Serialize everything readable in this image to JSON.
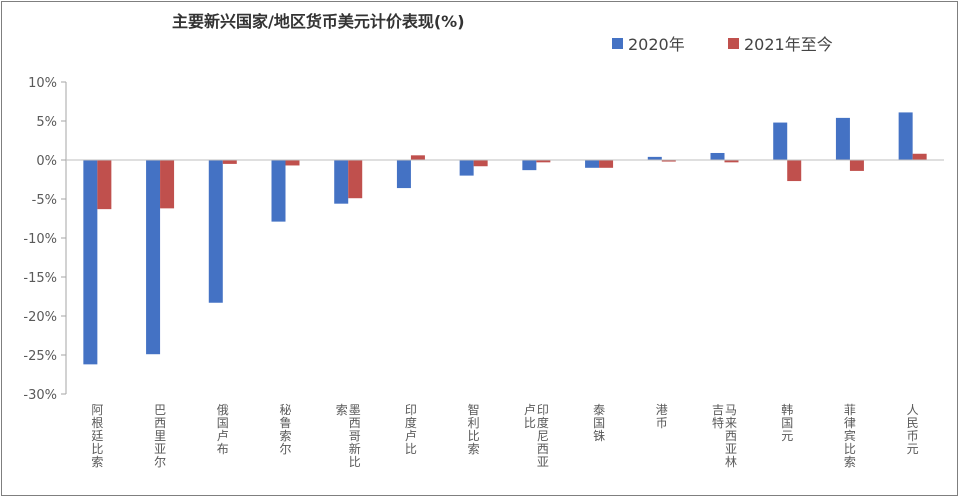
{
  "chart_data": {
    "type": "bar",
    "title": "主要新兴国家/地区货币美元计价表现(%)",
    "xlabel": "",
    "ylabel": "",
    "ylim": [
      -30,
      10
    ],
    "yticks": [
      "10%",
      "5%",
      "0%",
      "-5%",
      "-10%",
      "-15%",
      "-20%",
      "-25%",
      "-30%"
    ],
    "ytick_values": [
      10,
      5,
      0,
      -5,
      -10,
      -15,
      -20,
      -25,
      -30
    ],
    "grid": false,
    "legend_position": "top-right",
    "categories": [
      "阿根廷比索",
      "巴西里亚尔",
      "俄国卢布",
      "秘鲁索尔",
      "墨西哥新比索",
      "印度卢比",
      "智利比索",
      "印度尼西亚卢比",
      "泰国铢",
      "港币",
      "马来西亚林吉特",
      "韩国元",
      "菲律宾比索",
      "人民币元"
    ],
    "series": [
      {
        "name": "2020年",
        "color": "#4472C4",
        "values": [
          -26.2,
          -24.9,
          -18.3,
          -7.9,
          -5.6,
          -3.6,
          -2.0,
          -1.3,
          -1.0,
          0.4,
          0.9,
          4.8,
          5.4,
          6.1
        ]
      },
      {
        "name": "2021年至今",
        "color": "#C0504D",
        "values": [
          -6.3,
          -6.2,
          -0.5,
          -0.7,
          -4.9,
          0.6,
          -0.8,
          -0.3,
          -1.0,
          -0.2,
          -0.3,
          -2.7,
          -1.4,
          0.8
        ]
      }
    ]
  }
}
